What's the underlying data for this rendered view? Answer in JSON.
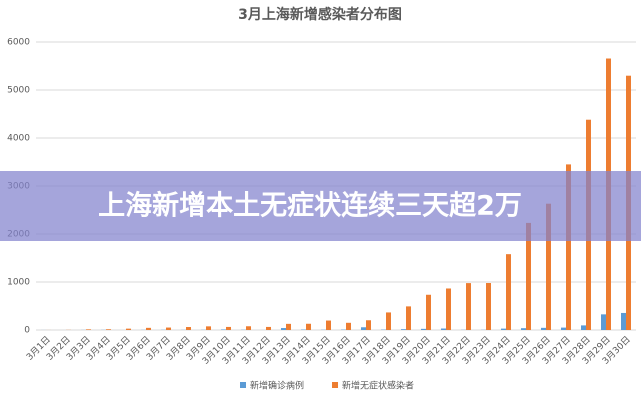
{
  "chart_data": {
    "type": "bar",
    "title": "3月上海新增感染者分布图",
    "categories": [
      "3月1日",
      "3月2日",
      "3月3日",
      "3月4日",
      "3月5日",
      "3月6日",
      "3月7日",
      "3月8日",
      "3月9日",
      "3月10日",
      "3月11日",
      "3月12日",
      "3月13日",
      "3月14日",
      "3月15日",
      "3月16日",
      "3月17日",
      "3月18日",
      "3月19日",
      "3月20日",
      "3月21日",
      "3月22日",
      "3月23日",
      "3月24日",
      "3月25日",
      "3月26日",
      "3月27日",
      "3月28日",
      "3月29日",
      "3月30日"
    ],
    "series": [
      {
        "name": "新增确诊病例",
        "color": "#5b9bd5",
        "values": [
          1,
          0,
          2,
          3,
          0,
          3,
          4,
          3,
          4,
          11,
          5,
          1,
          41,
          9,
          5,
          8,
          57,
          8,
          17,
          24,
          31,
          4,
          4,
          29,
          38,
          45,
          50,
          96,
          326,
          355
        ]
      },
      {
        "name": "新增无症状感染者",
        "color": "#ed7d31",
        "values": [
          1,
          3,
          14,
          16,
          28,
          45,
          51,
          62,
          76,
          64,
          78,
          64,
          128,
          130,
          197,
          150,
          203,
          366,
          492,
          734,
          865,
          977,
          979,
          1580,
          2231,
          2631,
          3450,
          4381,
          5656,
          5298
        ]
      }
    ],
    "ylim": [
      0,
      6000
    ],
    "yticks": [
      0,
      1000,
      2000,
      3000,
      4000,
      5000,
      6000
    ],
    "grid": true,
    "legend": "bottom"
  },
  "headline": "上海新增本土无症状连续三天超2万"
}
